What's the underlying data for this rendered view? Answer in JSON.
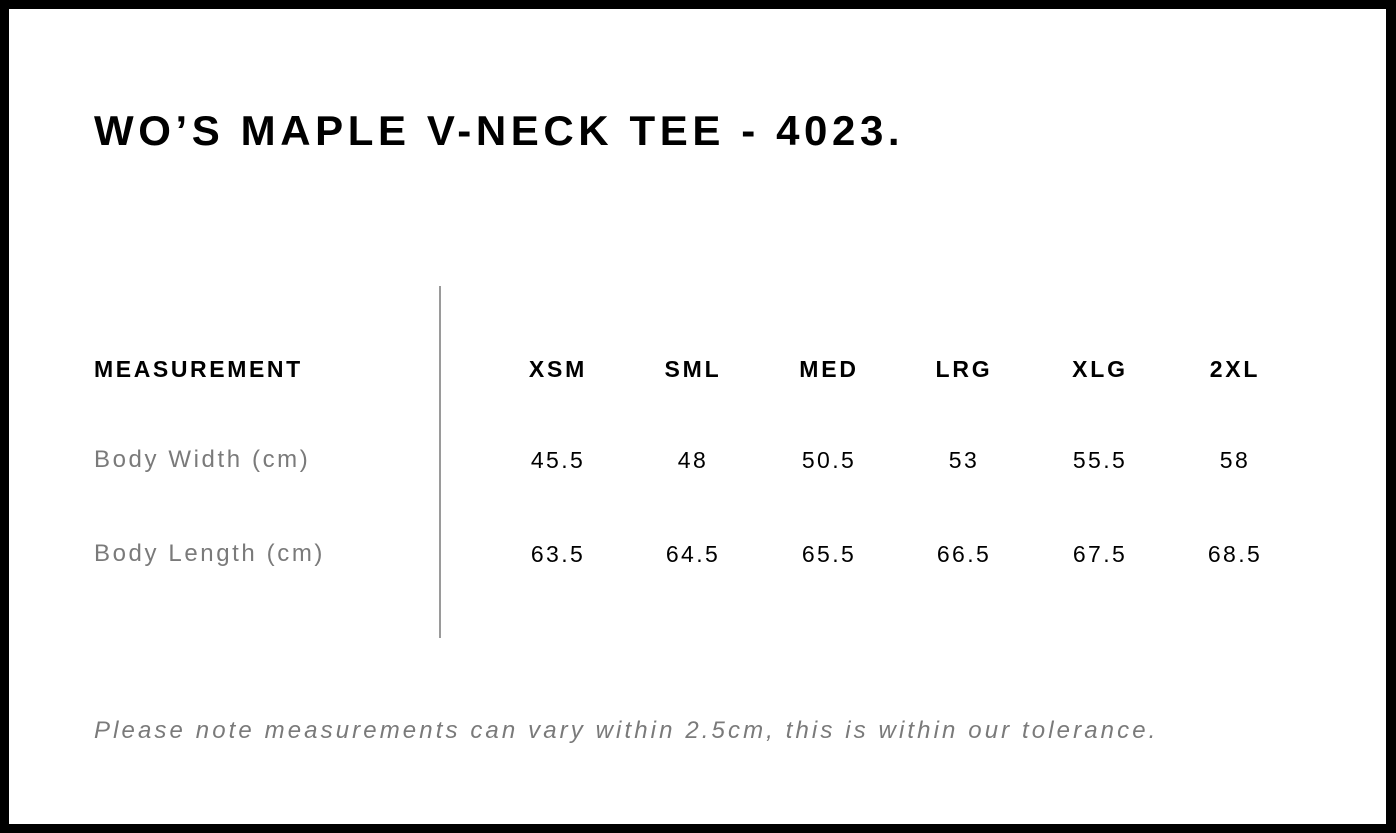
{
  "title": "WO’S MAPLE V-NECK TEE - 4023.",
  "table": {
    "header_label": "MEASUREMENT",
    "sizes": [
      "XSM",
      "SML",
      "MED",
      "LRG",
      "XLG",
      "2XL"
    ],
    "rows": [
      {
        "label": "Body Width (cm)",
        "values": [
          "45.5",
          "48",
          "50.5",
          "53",
          "55.5",
          "58"
        ]
      },
      {
        "label": "Body Length (cm)",
        "values": [
          "63.5",
          "64.5",
          "65.5",
          "66.5",
          "67.5",
          "68.5"
        ]
      }
    ]
  },
  "note": "Please note measurements can vary within 2.5cm, this is within our tolerance.",
  "colors": {
    "text": "#000000",
    "muted": "#7a7a7a",
    "border": "#000000"
  }
}
